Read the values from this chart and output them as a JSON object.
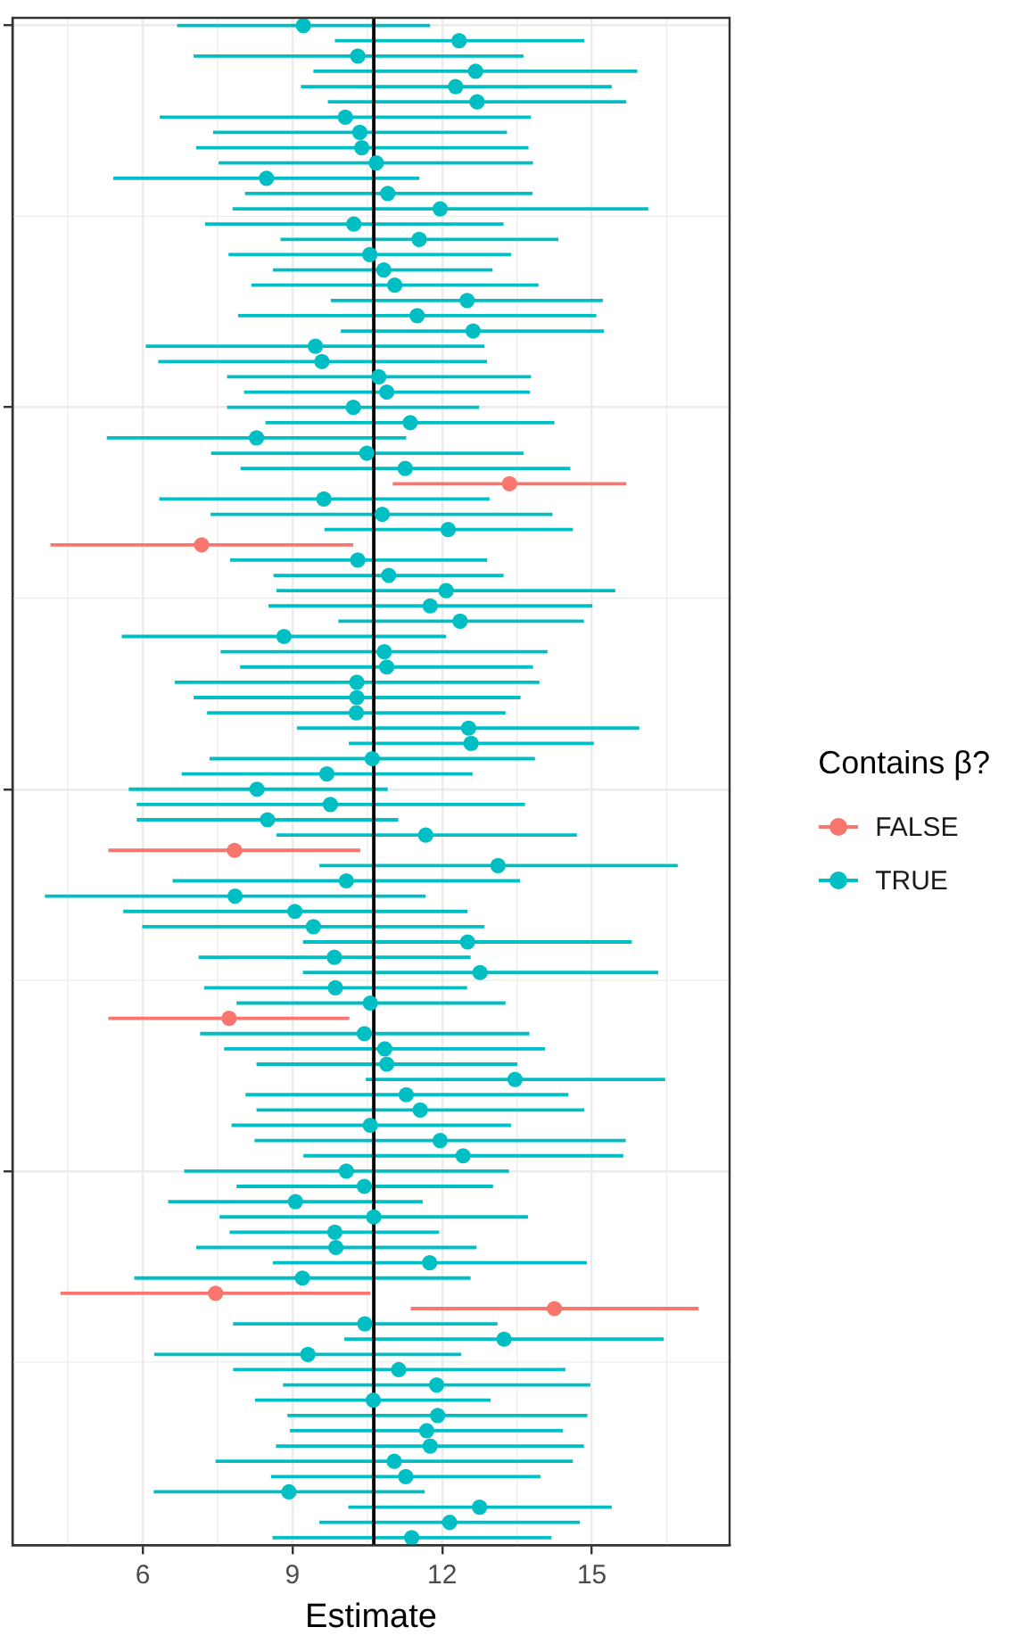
{
  "chart_data": {
    "type": "scatter",
    "orientation": "horizontal",
    "xlabel": "Estimate",
    "legend_title": "Contains β?",
    "legend": "right",
    "grid": true,
    "tick_labels": "x",
    "marker": "circle",
    "xlim": [
      3.39,
      17.76
    ],
    "xticks": [
      6,
      9,
      12,
      15
    ],
    "ref_lines": [
      {
        "axis": "x",
        "value": 10.63,
        "color": "#000000"
      }
    ],
    "categories": [
      null,
      null,
      null,
      null,
      null,
      null,
      null,
      null,
      null,
      null,
      null,
      null,
      null,
      null,
      null,
      null,
      null,
      null,
      null,
      null,
      null,
      null,
      null,
      null,
      null,
      null,
      null,
      null,
      null,
      null,
      null,
      null,
      null,
      null,
      null,
      null,
      null,
      null,
      null,
      null,
      null,
      null,
      null,
      null,
      null,
      null,
      null,
      null,
      null,
      null,
      null,
      null,
      null,
      null,
      null,
      null,
      null,
      null,
      null,
      null,
      null,
      null,
      null,
      null,
      null,
      null,
      null,
      null,
      null,
      null,
      null,
      null,
      null,
      null,
      null,
      null,
      null,
      null,
      null,
      null,
      null,
      null,
      null,
      null,
      null,
      null,
      null,
      null,
      null,
      null,
      null,
      null,
      null,
      null,
      null,
      null,
      null,
      null,
      null,
      null
    ],
    "series": [
      {
        "name": "FALSE",
        "color": "#f8766d",
        "values": [
          null,
          null,
          null,
          null,
          null,
          null,
          null,
          null,
          null,
          null,
          null,
          null,
          null,
          null,
          null,
          null,
          null,
          null,
          null,
          null,
          null,
          null,
          null,
          null,
          null,
          null,
          null,
          null,
          null,
          null,
          13.35,
          null,
          null,
          null,
          7.18,
          null,
          null,
          null,
          null,
          null,
          null,
          null,
          null,
          null,
          null,
          null,
          null,
          null,
          null,
          null,
          null,
          null,
          null,
          null,
          7.84,
          null,
          null,
          null,
          null,
          null,
          null,
          null,
          null,
          null,
          null,
          7.73,
          null,
          null,
          null,
          null,
          null,
          null,
          null,
          null,
          null,
          null,
          null,
          null,
          null,
          null,
          null,
          null,
          null,
          7.46,
          14.25,
          null,
          null,
          null,
          null,
          null,
          null,
          null,
          null,
          null,
          null,
          null,
          null,
          null,
          null,
          null
        ],
        "errors": [
          null,
          null,
          null,
          null,
          null,
          null,
          null,
          null,
          null,
          null,
          null,
          null,
          null,
          null,
          null,
          null,
          null,
          null,
          null,
          null,
          null,
          null,
          null,
          null,
          null,
          null,
          null,
          null,
          null,
          null,
          [
            11.01,
            15.69
          ],
          null,
          null,
          null,
          [
            4.15,
            10.22
          ],
          null,
          null,
          null,
          null,
          null,
          null,
          null,
          null,
          null,
          null,
          null,
          null,
          null,
          null,
          null,
          null,
          null,
          null,
          null,
          [
            5.31,
            10.36
          ],
          null,
          null,
          null,
          null,
          null,
          null,
          null,
          null,
          null,
          null,
          [
            5.31,
            10.14
          ],
          null,
          null,
          null,
          null,
          null,
          null,
          null,
          null,
          null,
          null,
          null,
          null,
          null,
          null,
          null,
          null,
          null,
          [
            4.35,
            10.56
          ],
          [
            11.37,
            17.14
          ],
          null,
          null,
          null,
          null,
          null,
          null,
          null,
          null,
          null,
          null,
          null,
          null,
          null,
          null,
          null
        ]
      },
      {
        "name": "TRUE",
        "color": "#00bfc4",
        "values": [
          9.22,
          12.34,
          10.31,
          12.67,
          12.27,
          12.7,
          10.06,
          10.35,
          10.39,
          10.68,
          8.48,
          10.91,
          11.96,
          10.23,
          11.54,
          10.55,
          10.83,
          11.05,
          12.5,
          11.5,
          12.62,
          9.46,
          9.59,
          10.73,
          10.89,
          10.22,
          11.36,
          8.28,
          10.49,
          11.26,
          null,
          9.63,
          10.8,
          12.12,
          null,
          10.31,
          10.93,
          12.08,
          11.76,
          12.36,
          8.83,
          10.84,
          10.89,
          10.29,
          10.29,
          10.28,
          12.53,
          12.58,
          10.6,
          9.69,
          8.29,
          9.76,
          8.5,
          11.67,
          null,
          13.12,
          10.08,
          7.85,
          9.05,
          9.42,
          12.51,
          9.84,
          12.76,
          9.86,
          10.56,
          null,
          10.44,
          10.85,
          10.89,
          13.46,
          11.28,
          11.56,
          10.56,
          11.96,
          12.42,
          10.08,
          10.44,
          9.06,
          10.63,
          9.85,
          9.87,
          11.75,
          9.2,
          null,
          null,
          10.45,
          13.24,
          9.31,
          11.13,
          11.89,
          10.62,
          11.91,
          11.69,
          11.76,
          11.04,
          11.27,
          8.93,
          12.75,
          12.15,
          11.39
        ],
        "errors": [
          [
            6.69,
            11.76
          ],
          [
            9.85,
            14.85
          ],
          [
            7.02,
            13.63
          ],
          [
            9.42,
            15.91
          ],
          [
            9.17,
            15.4
          ],
          [
            9.71,
            15.69
          ],
          [
            6.34,
            13.78
          ],
          [
            7.41,
            13.3
          ],
          [
            7.07,
            13.73
          ],
          [
            7.52,
            13.82
          ],
          [
            5.41,
            11.54
          ],
          [
            8.05,
            13.81
          ],
          [
            7.8,
            16.13
          ],
          [
            7.25,
            13.23
          ],
          [
            8.76,
            14.33
          ],
          [
            7.72,
            13.38
          ],
          [
            8.61,
            13.01
          ],
          [
            8.18,
            13.93
          ],
          [
            9.77,
            15.22
          ],
          [
            7.91,
            15.09
          ],
          [
            9.97,
            15.24
          ],
          [
            6.06,
            12.85
          ],
          [
            6.31,
            12.9
          ],
          [
            7.69,
            13.78
          ],
          [
            8.03,
            13.76
          ],
          [
            7.69,
            12.74
          ],
          [
            8.46,
            14.25
          ],
          [
            5.28,
            11.28
          ],
          [
            7.37,
            13.63
          ],
          [
            7.96,
            14.57
          ],
          null,
          [
            6.33,
            12.95
          ],
          [
            7.36,
            14.21
          ],
          [
            9.64,
            14.62
          ],
          null,
          [
            7.75,
            12.9
          ],
          [
            8.62,
            13.23
          ],
          [
            8.68,
            15.47
          ],
          [
            8.52,
            15.01
          ],
          [
            9.92,
            14.84
          ],
          [
            5.58,
            12.08
          ],
          [
            7.56,
            14.11
          ],
          [
            7.95,
            13.82
          ],
          [
            6.64,
            13.95
          ],
          [
            7.02,
            13.57
          ],
          [
            7.29,
            13.27
          ],
          [
            9.09,
            15.95
          ],
          [
            10.13,
            15.04
          ],
          [
            7.34,
            13.86
          ],
          [
            6.78,
            12.61
          ],
          [
            5.72,
            10.91
          ],
          [
            5.88,
            13.66
          ],
          [
            5.88,
            11.12
          ],
          [
            8.68,
            14.7
          ],
          null,
          [
            9.54,
            16.72
          ],
          [
            6.6,
            13.56
          ],
          [
            4.04,
            11.67
          ],
          [
            5.61,
            12.51
          ],
          [
            5.99,
            12.85
          ],
          [
            9.21,
            15.8
          ],
          [
            7.12,
            12.57
          ],
          [
            9.21,
            16.33
          ],
          [
            7.23,
            12.5
          ],
          [
            7.88,
            13.27
          ],
          null,
          [
            7.15,
            13.75
          ],
          [
            7.63,
            14.06
          ],
          [
            8.28,
            13.51
          ],
          [
            10.47,
            16.47
          ],
          [
            8.06,
            14.53
          ],
          [
            8.28,
            14.85
          ],
          [
            7.78,
            13.38
          ],
          [
            8.24,
            15.68
          ],
          [
            9.22,
            15.63
          ],
          [
            6.83,
            13.34
          ],
          [
            7.88,
            13.02
          ],
          [
            6.51,
            11.61
          ],
          [
            7.54,
            13.72
          ],
          [
            7.74,
            11.94
          ],
          [
            7.07,
            12.69
          ],
          [
            8.61,
            14.9
          ],
          [
            5.83,
            12.57
          ],
          null,
          null,
          [
            7.81,
            13.11
          ],
          [
            10.04,
            16.44
          ],
          [
            6.23,
            12.38
          ],
          [
            7.81,
            14.47
          ],
          [
            8.81,
            14.97
          ],
          [
            8.25,
            12.97
          ],
          [
            8.9,
            14.91
          ],
          [
            8.95,
            14.42
          ],
          [
            8.67,
            14.84
          ],
          [
            7.46,
            14.62
          ],
          [
            8.57,
            13.97
          ],
          [
            6.22,
            11.65
          ],
          [
            10.12,
            15.4
          ],
          [
            9.54,
            14.76
          ],
          [
            8.6,
            14.19
          ]
        ]
      }
    ]
  }
}
